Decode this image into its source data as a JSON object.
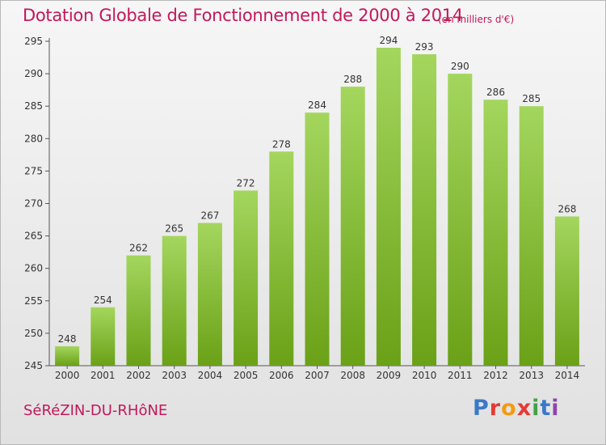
{
  "header": {
    "title": "Dotation Globale de Fonctionnement de 2000 à 2014",
    "unit": "(en milliers d'€)"
  },
  "footer": {
    "commune": "SéRéZIN-DU-RHôNE",
    "logo_letters": [
      "P",
      "r",
      "o",
      "x",
      "i",
      "t",
      "i"
    ],
    "logo_colors": [
      "#3a78c9",
      "#e53935",
      "#f39c12",
      "#e53935",
      "#43a047",
      "#3a78c9",
      "#8e44ad"
    ]
  },
  "chart_data": {
    "type": "bar",
    "categories": [
      "2000",
      "2001",
      "2002",
      "2003",
      "2004",
      "2005",
      "2006",
      "2007",
      "2008",
      "2009",
      "2010",
      "2011",
      "2012",
      "2013",
      "2014"
    ],
    "values": [
      248,
      254,
      262,
      265,
      267,
      272,
      278,
      284,
      288,
      294,
      293,
      290,
      286,
      285,
      268
    ],
    "title": "Dotation Globale de Fonctionnement de 2000 à 2014",
    "ylim": [
      245,
      295
    ],
    "yticks": [
      245,
      250,
      255,
      260,
      265,
      270,
      275,
      280,
      285,
      290,
      295
    ],
    "grid": false,
    "bar_color_top": "#a4d65e",
    "bar_color_bottom": "#6aa117"
  }
}
